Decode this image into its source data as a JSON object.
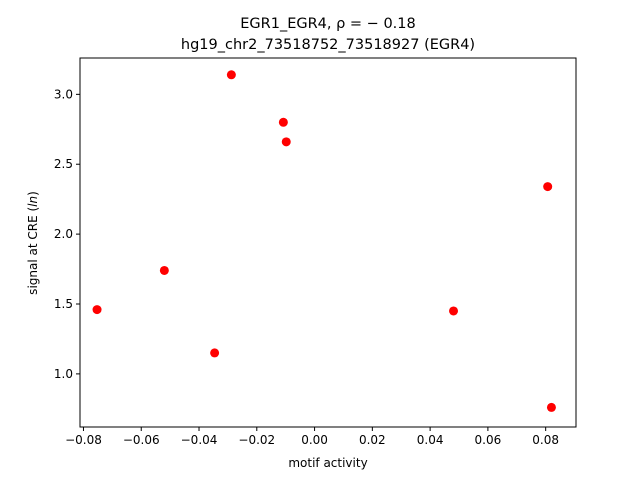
{
  "chart_data": {
    "type": "scatter",
    "title_line1": "EGR1_EGR4, ρ = − 0.18",
    "title_line2": "hg19_chr2_73518752_73518927 (EGR4)",
    "xlabel": "motif activity",
    "ylabel_prefix": "signal at CRE (",
    "ylabel_italic": "ln",
    "ylabel_suffix": ")",
    "xlim": [
      -0.0812,
      0.0905
    ],
    "ylim": [
      0.62,
      3.26
    ],
    "xticks": [
      -0.08,
      -0.06,
      -0.04,
      -0.02,
      0.0,
      0.02,
      0.04,
      0.06,
      0.08
    ],
    "xtick_labels": [
      "−0.08",
      "−0.06",
      "−0.04",
      "−0.02",
      "0.00",
      "0.02",
      "0.04",
      "0.06",
      "0.08"
    ],
    "yticks": [
      1.0,
      1.5,
      2.0,
      2.5,
      3.0
    ],
    "ytick_labels": [
      "1.0",
      "1.5",
      "2.0",
      "2.5",
      "3.0"
    ],
    "marker_color": "#ff0000",
    "grid": false,
    "points": [
      {
        "x": -0.0753,
        "y": 1.46
      },
      {
        "x": -0.052,
        "y": 1.74
      },
      {
        "x": -0.0346,
        "y": 1.15
      },
      {
        "x": -0.0288,
        "y": 3.14
      },
      {
        "x": -0.0108,
        "y": 2.8
      },
      {
        "x": -0.0098,
        "y": 2.66
      },
      {
        "x": 0.0481,
        "y": 1.45
      },
      {
        "x": 0.0807,
        "y": 2.34
      },
      {
        "x": 0.082,
        "y": 0.76
      }
    ]
  }
}
